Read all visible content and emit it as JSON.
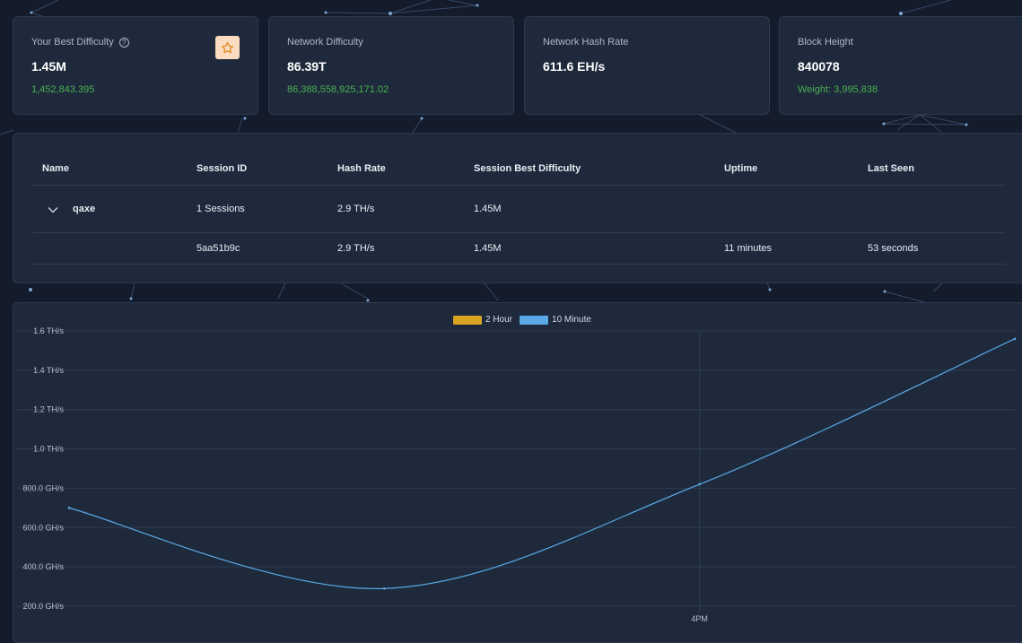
{
  "stats": [
    {
      "label": "Your Best Difficulty",
      "value": "1.45M",
      "sub": "1,452,843.395"
    },
    {
      "label": "Network Difficulty",
      "value": "86.39T",
      "sub": "86,388,558,925,171.02"
    },
    {
      "label": "Network Hash Rate",
      "value": "611.6 EH/s",
      "sub": ""
    },
    {
      "label": "Block Height",
      "value": "840078",
      "sub": "Weight: 3,995,838"
    }
  ],
  "table": {
    "headers": [
      "Name",
      "Session ID",
      "Hash Rate",
      "Session Best Difficulty",
      "Uptime",
      "Last Seen"
    ],
    "group": {
      "name": "qaxe",
      "session_id": "1 Sessions",
      "hash_rate": "2.9 TH/s",
      "best_difficulty": "1.45M",
      "uptime": "",
      "last_seen": ""
    },
    "session": {
      "name": "",
      "session_id": "5aa51b9c",
      "hash_rate": "2.9 TH/s",
      "best_difficulty": "1.45M",
      "uptime": "11 minutes",
      "last_seen": "53 seconds"
    }
  },
  "colors": {
    "series_2h": "#d9a520",
    "series_10m": "#5aa9e6",
    "positive": "#4caf50"
  },
  "chart_data": {
    "type": "line",
    "x_tick_labels": [
      "4PM"
    ],
    "y_tick_labels": [
      "200.0 GH/s",
      "400.0 GH/s",
      "600.0 GH/s",
      "800.0 GH/s",
      "1.0 TH/s",
      "1.2 TH/s",
      "1.4 TH/s",
      "1.6 TH/s"
    ],
    "y_ticks_ghs": [
      200,
      400,
      600,
      800,
      1000,
      1200,
      1400,
      1600
    ],
    "ylim_ghs": [
      200,
      1600
    ],
    "x_ticks_index": [
      2
    ],
    "xlim_index": [
      0,
      3
    ],
    "legend": [
      "2 Hour",
      "10 Minute"
    ],
    "series": [
      {
        "name": "2 Hour",
        "color": "#d9a520",
        "values_ghs": []
      },
      {
        "name": "10 Minute",
        "color": "#5aa9e6",
        "x": [
          0,
          1,
          2,
          3
        ],
        "values_ghs": [
          700,
          290,
          820,
          1560
        ]
      }
    ],
    "grid": true,
    "legend_position": "top"
  }
}
